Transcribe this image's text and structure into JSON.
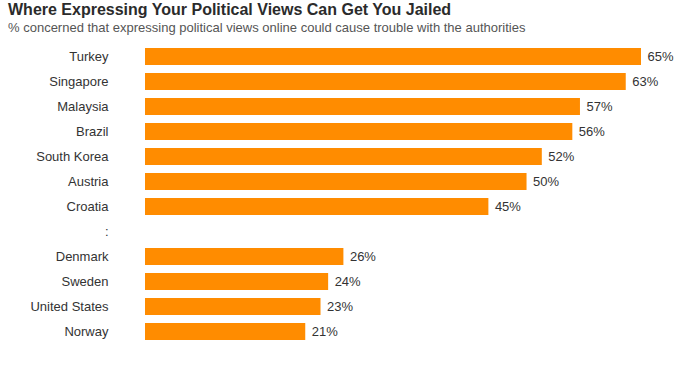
{
  "chart_data": {
    "type": "bar",
    "title": "Where Expressing Your Political Views Can Get You Jailed",
    "subtitle": "% concerned that expressing political views online could cause trouble with the authorities",
    "orientation": "horizontal",
    "categories": [
      "Turkey",
      "Singapore",
      "Malaysia",
      "Brazil",
      "South Korea",
      "Austria",
      "Croatia",
      ":",
      "Denmark",
      "Sweden",
      "United States",
      "Norway"
    ],
    "values": [
      65,
      63,
      57,
      56,
      52,
      50,
      45,
      null,
      26,
      24,
      23,
      21
    ],
    "value_labels": [
      "65%",
      "63%",
      "57%",
      "56%",
      "52%",
      "50%",
      "45%",
      null,
      "26%",
      "24%",
      "23%",
      "21%"
    ],
    "color": "#ff8c00",
    "data_labels": true,
    "tick_labels": "y",
    "grid": false
  }
}
